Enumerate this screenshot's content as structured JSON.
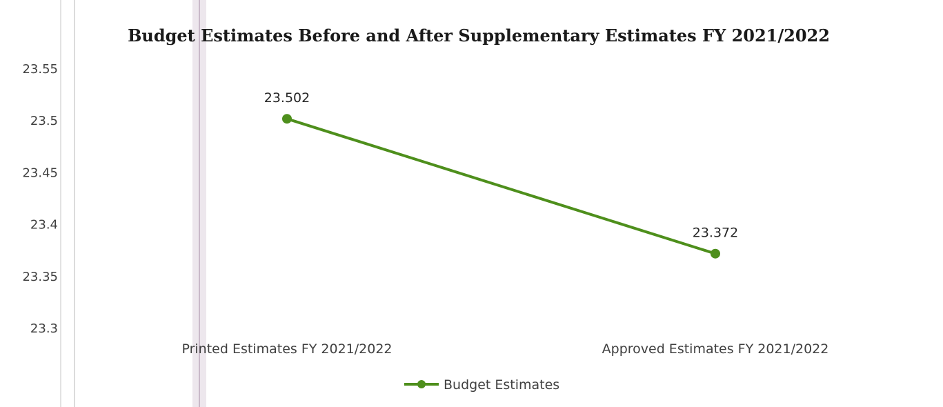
{
  "chart_data": {
    "type": "line",
    "title": "Budget Estimates Before and After Supplementary Estimates FY 2021/2022",
    "categories": [
      "Printed Estimates FY 2021/2022",
      "Approved Estimates FY 2021/2022"
    ],
    "series": [
      {
        "name": "Budget Estimates",
        "values": [
          23.502,
          23.372
        ],
        "data_labels": [
          "23.502",
          "23.372"
        ],
        "color": "#4e8f1c"
      }
    ],
    "y_ticks": [
      "23.3",
      "23.35",
      "23.4",
      "23.45",
      "23.5",
      "23.55"
    ],
    "ylim": [
      23.3,
      23.55
    ],
    "xlabel": "",
    "ylabel": "",
    "grid": false,
    "legend": "bottom"
  }
}
